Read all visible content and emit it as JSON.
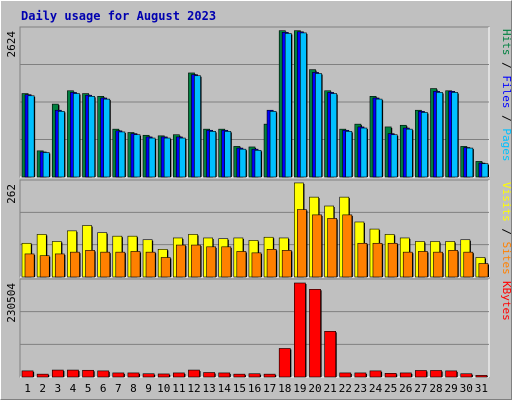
{
  "title": "Daily usage for August 2023",
  "chart_data": [
    {
      "type": "bar",
      "panel": "hits-files-pages",
      "categories": [
        "1",
        "2",
        "3",
        "4",
        "5",
        "6",
        "7",
        "8",
        "9",
        "10",
        "11",
        "12",
        "13",
        "14",
        "15",
        "16",
        "17",
        "18",
        "19",
        "20",
        "21",
        "22",
        "23",
        "24",
        "25",
        "26",
        "27",
        "28",
        "29",
        "30",
        "31"
      ],
      "category_colors": {
        "5": "#008040",
        "6": "#008040",
        "12": "#008040",
        "13": "#008040",
        "19": "#008040",
        "20": "#008040",
        "26": "#008040",
        "27": "#008040"
      },
      "ymax_label": "2624",
      "ymax": 2624,
      "side_label": [
        {
          "text": "Pages",
          "color": "#00c0ff"
        },
        {
          "text": " / ",
          "color": "#000000"
        },
        {
          "text": "Files",
          "color": "#0000ff"
        },
        {
          "text": " / ",
          "color": "#000000"
        },
        {
          "text": "Hits",
          "color": "#008040"
        }
      ],
      "series": [
        {
          "name": "Hits",
          "color": "#008040",
          "values": [
            1500,
            470,
            1310,
            1550,
            1500,
            1450,
            860,
            800,
            750,
            740,
            760,
            1870,
            860,
            860,
            550,
            540,
            950,
            2630,
            2630,
            1930,
            1550,
            860,
            950,
            1450,
            900,
            930,
            1200,
            1590,
            1550,
            550,
            280
          ]
        },
        {
          "name": "Files",
          "color": "#0000ff",
          "values": [
            1480,
            450,
            1200,
            1520,
            1470,
            1420,
            830,
            780,
            720,
            720,
            720,
            1840,
            840,
            840,
            520,
            500,
            1200,
            2600,
            2610,
            1880,
            1520,
            840,
            900,
            1420,
            780,
            880,
            1180,
            1540,
            1540,
            530,
            250
          ]
        },
        {
          "name": "Pages",
          "color": "#00c0ff",
          "values": [
            1460,
            440,
            1180,
            1500,
            1450,
            1400,
            810,
            760,
            700,
            700,
            700,
            1820,
            820,
            820,
            500,
            480,
            1180,
            2580,
            2590,
            1860,
            1500,
            820,
            880,
            1400,
            760,
            860,
            1160,
            1520,
            1520,
            520,
            240
          ]
        }
      ]
    },
    {
      "type": "bar",
      "panel": "visits-sites",
      "ymax_label": "262",
      "ymax": 262,
      "side_label": [
        {
          "text": "Sites",
          "color": "#ff8000"
        },
        {
          "text": " / ",
          "color": "#000000"
        },
        {
          "text": "Visits",
          "color": "#ffff00"
        }
      ],
      "series": [
        {
          "name": "Visits",
          "color": "#ffff00",
          "values": [
            95,
            120,
            100,
            130,
            145,
            125,
            115,
            115,
            105,
            78,
            110,
            120,
            110,
            108,
            110,
            103,
            112,
            110,
            265,
            225,
            200,
            225,
            155,
            135,
            120,
            110,
            100,
            100,
            100,
            105,
            55
          ]
        },
        {
          "name": "Sites",
          "color": "#ff8000",
          "values": [
            65,
            60,
            65,
            70,
            75,
            70,
            70,
            72,
            70,
            55,
            90,
            90,
            85,
            85,
            72,
            68,
            78,
            75,
            190,
            175,
            165,
            175,
            95,
            95,
            95,
            70,
            72,
            70,
            75,
            70,
            38
          ]
        }
      ]
    },
    {
      "type": "bar",
      "panel": "kbytes",
      "ymax_label": "230504",
      "ymax": 230504,
      "side_label": [
        {
          "text": "KBytes",
          "color": "#ff0000"
        }
      ],
      "series": [
        {
          "name": "KBytes",
          "color": "#ff0000",
          "values": [
            15000,
            7000,
            17000,
            17000,
            16500,
            15000,
            10000,
            10000,
            8000,
            7500,
            10000,
            17000,
            11000,
            10000,
            7000,
            8000,
            7000,
            70000,
            230500,
            215000,
            112000,
            10000,
            10000,
            15000,
            9000,
            10000,
            16000,
            16000,
            15000,
            8000,
            4000
          ]
        }
      ]
    }
  ]
}
